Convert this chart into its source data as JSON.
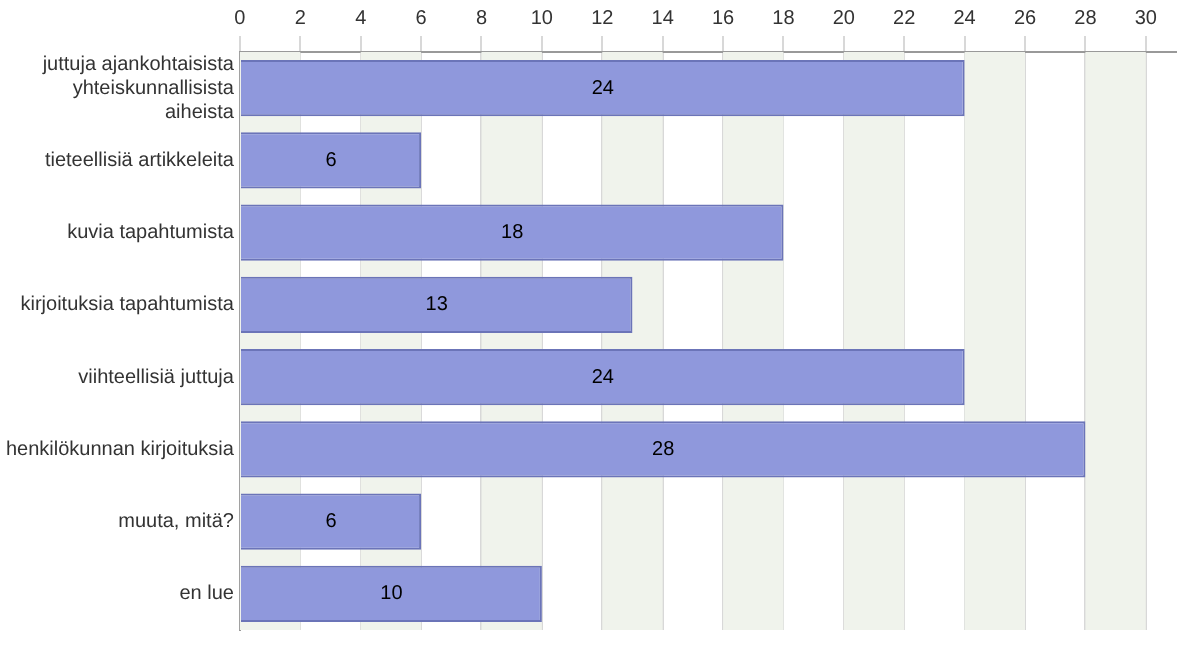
{
  "chart_data": {
    "type": "bar",
    "orientation": "horizontal",
    "categories": [
      "juttuja ajankohtaisista yhteiskunnallisista aiheista",
      "tieteellisiä artikkeleita",
      "kuvia tapahtumista",
      "kirjoituksia tapahtumista",
      "viihteellisiä juttuja",
      "henkilökunnan kirjoituksia",
      "muuta, mitä?",
      "en lue"
    ],
    "values": [
      24,
      6,
      18,
      13,
      24,
      28,
      6,
      10
    ],
    "color": "#8f98dc",
    "xlim": [
      0,
      31
    ],
    "xticks": [
      0,
      2,
      4,
      6,
      8,
      10,
      12,
      14,
      16,
      18,
      20,
      22,
      24,
      26,
      28,
      30
    ],
    "grid": "x",
    "legend": false,
    "data_labels": true
  }
}
